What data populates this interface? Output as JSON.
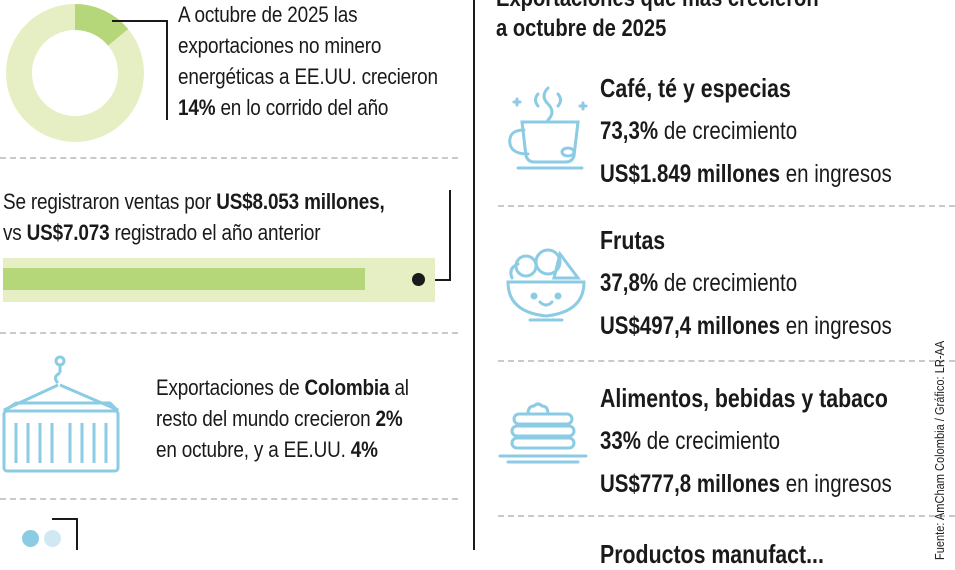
{
  "left": {
    "donut": {
      "line1": "A octubre de 2025 las",
      "line2": "exportaciones no minero",
      "line3": "energéticas a EE.UU. crecieron",
      "pct": "14%",
      "line4_rest": " en lo corrido del año",
      "share": 0.14
    },
    "sales": {
      "pre": "Se registraron ventas por ",
      "amount": "US$8.053 millones,",
      "vs": "vs ",
      "prev": "US$7.073",
      "rest": " registrado el año anterior",
      "bar_fraction": 0.878
    },
    "container": {
      "line1_pre": "Exportaciones de ",
      "country": "Colombia",
      "line1_post": " al",
      "line2_pre": "resto del mundo crecieron ",
      "pct_world": "2%",
      "line3_pre": "en octubre, y a EE.UU. ",
      "pct_us": "4%"
    }
  },
  "right": {
    "title_line1": "Exportaciones que más crecieron",
    "title_line2": "a octubre de 2025",
    "items": [
      {
        "name": "Café, té y especias",
        "growth": "73,3%",
        "growth_label": " de crecimiento",
        "income": "US$1.849 millones",
        "income_label": " en ingresos",
        "icon": "coffee-cup-icon"
      },
      {
        "name": "Frutas",
        "growth": "37,8%",
        "growth_label": " de crecimiento",
        "income": "US$497,4 millones",
        "income_label": " en ingresos",
        "icon": "fruit-bowl-icon"
      },
      {
        "name": "Alimentos, bebidas y tabaco",
        "growth": "33%",
        "growth_label": " de crecimiento",
        "income": "US$777,8 millones",
        "income_label": " en ingresos",
        "icon": "pancakes-icon"
      },
      {
        "name": "Productos manufact...",
        "icon": "none"
      }
    ],
    "credit": "Fuente: AmCham Colombia / Gráfico: LR-AA"
  },
  "colors": {
    "light_green": "#e6efc4",
    "green": "#b6d67a",
    "icon_blue": "#8ccbe4",
    "dash": "#c9c9c9"
  }
}
